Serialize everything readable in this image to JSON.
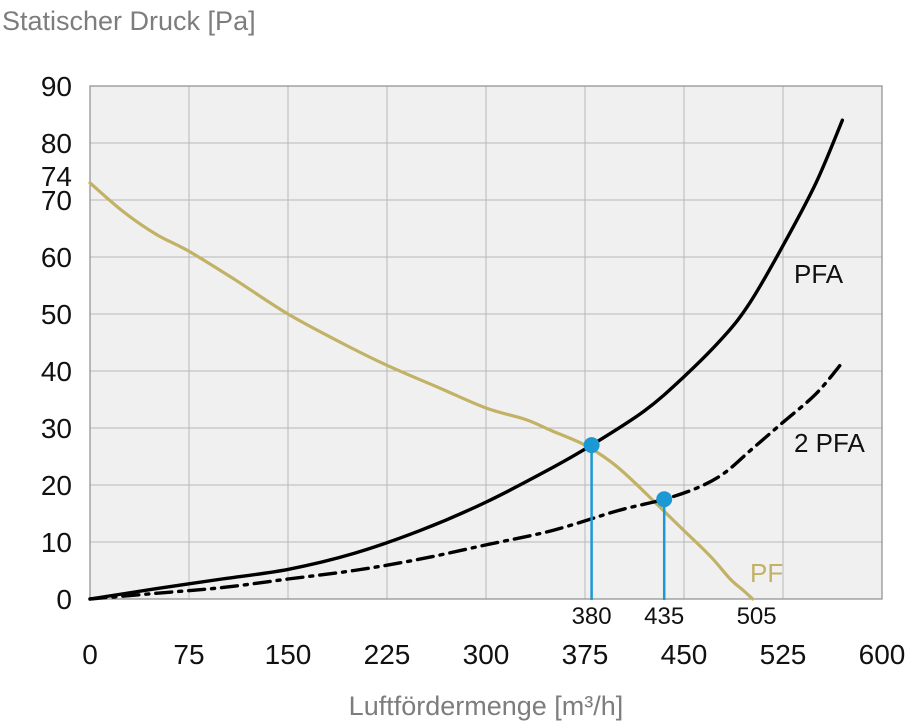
{
  "chart_data": {
    "type": "line",
    "ylabel": "Statischer Druck [Pa]",
    "xlabel": "Luftfördermenge [m³/h]",
    "xlim": [
      0,
      600
    ],
    "ylim": [
      0,
      90
    ],
    "grid": true,
    "x_ticks": [
      0,
      75,
      150,
      225,
      300,
      375,
      450,
      525,
      600
    ],
    "y_ticks": [
      0,
      10,
      20,
      30,
      40,
      50,
      60,
      70,
      80,
      90
    ],
    "extra_y_tick": {
      "label": "74",
      "value": 74
    },
    "series": [
      {
        "name": "PF",
        "color": "#c1b266",
        "style": "solid",
        "x": [
          0,
          25,
          50,
          75,
          110,
          150,
          190,
          225,
          265,
          300,
          330,
          350,
          375,
          395,
          410,
          430,
          450,
          470,
          485,
          495,
          502
        ],
        "y": [
          73,
          68,
          64,
          61,
          56,
          50,
          45,
          41,
          37,
          33.5,
          31.5,
          29.5,
          27,
          24,
          21,
          16.5,
          12,
          7.5,
          3.5,
          1.5,
          0
        ]
      },
      {
        "name": "PFA",
        "color": "#000000",
        "style": "solid",
        "x": [
          0,
          50,
          100,
          150,
          200,
          250,
          300,
          350,
          380,
          420,
          450,
          480,
          500,
          525,
          550,
          570
        ],
        "y": [
          0,
          1.8,
          3.5,
          5.2,
          8,
          12,
          17,
          23,
          27,
          33,
          39,
          46,
          52,
          62,
          73,
          84
        ]
      },
      {
        "name": "2 PFA",
        "color": "#000000",
        "style": "dashdot",
        "x": [
          0,
          50,
          100,
          150,
          200,
          250,
          300,
          350,
          400,
          435,
          460,
          480,
          500,
          525,
          550,
          570
        ],
        "y": [
          0,
          1,
          2,
          3.5,
          5,
          7,
          9.5,
          12,
          15.5,
          17.5,
          19.5,
          22,
          26,
          31,
          36,
          41.5
        ]
      }
    ],
    "operating_points": [
      {
        "x": 380,
        "y": 27,
        "label": "380"
      },
      {
        "x": 435,
        "y": 17.5,
        "label": "435"
      }
    ],
    "annotations": [
      {
        "text": "505",
        "x": 505
      }
    ],
    "marker_color": "#1c98d4",
    "grid_color": "#b8b8b8",
    "plot_background": "#f0f0f0"
  }
}
